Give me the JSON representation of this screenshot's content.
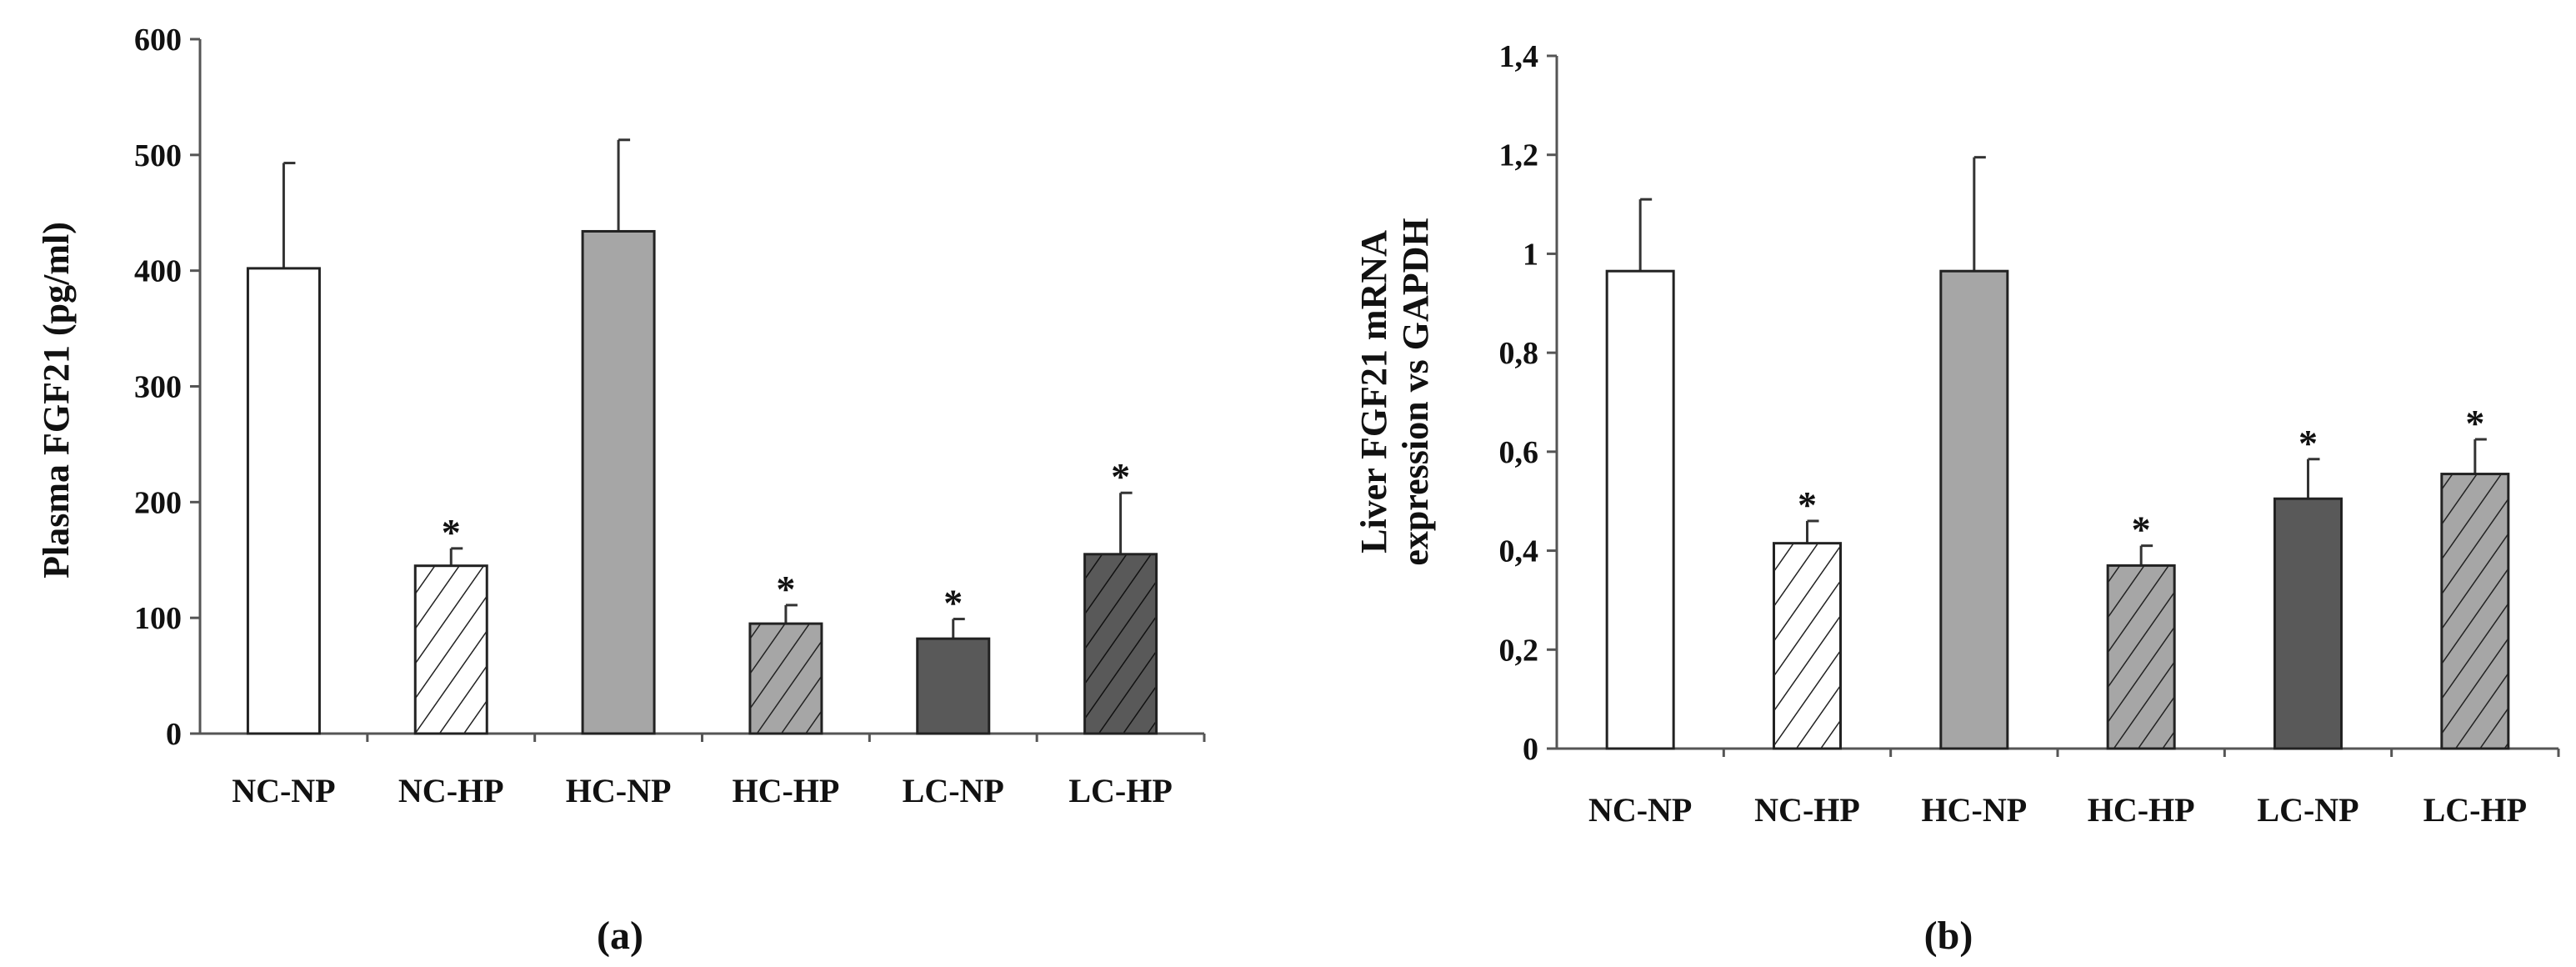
{
  "chart_data": [
    {
      "type": "bar",
      "panel_label": "(a)",
      "ylabel": "Plasma FGF21 (pg/ml)",
      "xlabel": "",
      "ylim": [
        0,
        600
      ],
      "yticks": [
        0,
        100,
        200,
        300,
        400,
        500,
        600
      ],
      "ytick_labels": [
        "0",
        "100",
        "200",
        "300",
        "400",
        "500",
        "600"
      ],
      "categories": [
        "NC-NP",
        "NC-HP",
        "HC-NP",
        "HC-HP",
        "LC-NP",
        "LC-HP"
      ],
      "values": [
        402,
        145,
        434,
        95,
        82,
        155
      ],
      "errors": [
        91,
        15,
        79,
        16,
        17,
        53
      ],
      "significance": [
        "",
        "*",
        "",
        "*",
        "*",
        "*"
      ],
      "fills": [
        "white",
        "hatch-white",
        "#a6a6a6",
        "hatch-gray",
        "#595959",
        "hatch-dark"
      ]
    },
    {
      "type": "bar",
      "panel_label": "(b)",
      "ylabel_line1": "Liver FGF21 mRNA",
      "ylabel_line2": "expression vs GAPDH",
      "xlabel": "",
      "ylim": [
        0,
        1.4
      ],
      "yticks": [
        0,
        0.2,
        0.4,
        0.6,
        0.8,
        1.0,
        1.2,
        1.4
      ],
      "ytick_labels": [
        "0",
        "0,2",
        "0,4",
        "0,6",
        "0,8",
        "1",
        "1,2",
        "1,4"
      ],
      "categories": [
        "NC-NP",
        "NC-HP",
        "HC-NP",
        "HC-HP",
        "LC-NP",
        "LC-HP"
      ],
      "values": [
        0.965,
        0.415,
        0.965,
        0.37,
        0.505,
        0.555
      ],
      "errors": [
        0.145,
        0.045,
        0.23,
        0.04,
        0.08,
        0.07
      ],
      "significance": [
        "",
        "*",
        "",
        "*",
        "*",
        "*"
      ],
      "fills": [
        "white",
        "hatch-white",
        "#a6a6a6",
        "hatch-gray",
        "#595959",
        "hatch-gray"
      ]
    }
  ]
}
